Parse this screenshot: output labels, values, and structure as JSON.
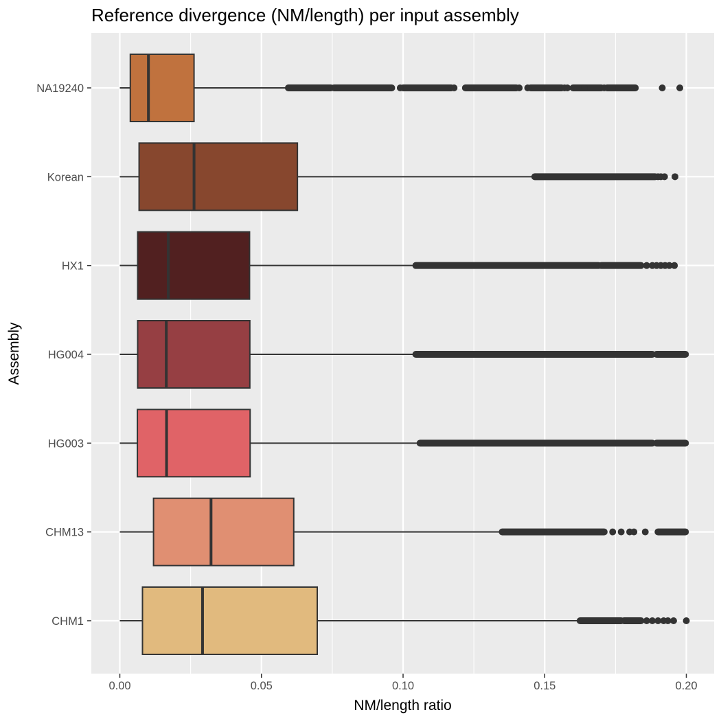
{
  "chart_data": {
    "type": "boxplot",
    "orientation": "horizontal",
    "title": "Reference divergence (NM/length) per input assembly",
    "xlabel": "NM/length ratio",
    "ylabel": "Assembly",
    "xlim": [
      0.0,
      0.2
    ],
    "x_ticks": [
      0.0,
      0.05,
      0.1,
      0.15,
      0.2
    ],
    "x_tick_labels": [
      "0.00",
      "0.05",
      "0.10",
      "0.15",
      "0.20"
    ],
    "grid": true,
    "legend": "none",
    "series": [
      {
        "category": "NA19240",
        "color": "#C0723E",
        "min": 0.0,
        "q1": 0.0037,
        "median": 0.0101,
        "q3": 0.0262,
        "whisker_high": 0.0595,
        "outlier_ranges": [
          [
            0.0595,
            0.0745
          ],
          [
            0.0756,
            0.096
          ],
          [
            0.1,
            0.117
          ],
          [
            0.122,
            0.14
          ],
          [
            0.145,
            0.156
          ],
          [
            0.16,
            0.17
          ],
          [
            0.172,
            0.182
          ]
        ],
        "outliers": [
          0.099,
          0.118,
          0.141,
          0.144,
          0.157,
          0.158,
          0.164,
          0.171,
          0.1915,
          0.1977
        ]
      },
      {
        "category": "Korean",
        "color": "#87472E",
        "min": 0.0,
        "q1": 0.0068,
        "median": 0.0262,
        "q3": 0.0627,
        "whisker_high": 0.1465,
        "outlier_ranges": [
          [
            0.1465,
            0.189
          ]
        ],
        "outliers": [
          0.19,
          0.191,
          0.1923,
          0.196
        ]
      },
      {
        "category": "HX1",
        "color": "#512020",
        "min": 0.0,
        "q1": 0.0063,
        "median": 0.0171,
        "q3": 0.0458,
        "whisker_high": 0.1045,
        "outlier_ranges": [
          [
            0.1045,
            0.169
          ],
          [
            0.17,
            0.184
          ]
        ],
        "outliers": [
          0.186,
          0.188,
          0.1895,
          0.191,
          0.1925,
          0.194,
          0.1958
        ]
      },
      {
        "category": "HG004",
        "color": "#963F43",
        "min": 0.0,
        "q1": 0.0063,
        "median": 0.0164,
        "q3": 0.0459,
        "whisker_high": 0.1045,
        "outlier_ranges": [
          [
            0.1045,
            0.188
          ],
          [
            0.1895,
            0.1997
          ]
        ],
        "outliers": []
      },
      {
        "category": "HG003",
        "color": "#E06367",
        "min": 0.0,
        "q1": 0.0062,
        "median": 0.0165,
        "q3": 0.046,
        "whisker_high": 0.106,
        "outlier_ranges": [
          [
            0.106,
            0.188
          ],
          [
            0.1895,
            0.1997
          ]
        ],
        "outliers": []
      },
      {
        "category": "CHM13",
        "color": "#E08F72",
        "min": 0.0,
        "q1": 0.0119,
        "median": 0.0322,
        "q3": 0.0614,
        "whisker_high": 0.135,
        "outlier_ranges": [
          [
            0.135,
            0.171
          ],
          [
            0.19,
            0.1997
          ]
        ],
        "outliers": [
          0.174,
          0.177,
          0.18,
          0.1815,
          0.1855
        ]
      },
      {
        "category": "CHM1",
        "color": "#E1BA7E",
        "min": 0.0,
        "q1": 0.008,
        "median": 0.0292,
        "q3": 0.0697,
        "whisker_high": 0.1625,
        "outlier_ranges": [
          [
            0.1625,
            0.177
          ],
          [
            0.178,
            0.184
          ]
        ],
        "outliers": [
          0.186,
          0.188,
          0.19,
          0.192,
          0.1935,
          0.1955,
          0.2
        ]
      }
    ]
  }
}
